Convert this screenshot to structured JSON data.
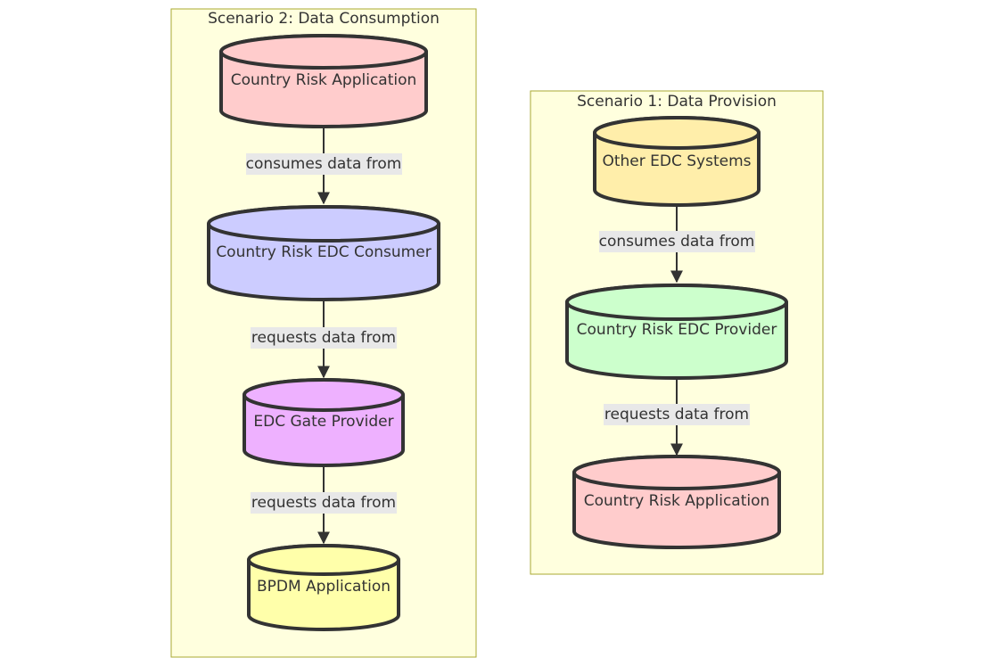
{
  "clusters": [
    {
      "id": "s2",
      "title": "Scenario 2: Data Consumption"
    },
    {
      "id": "s1",
      "title": "Scenario 1: Data Provision"
    }
  ],
  "nodes": [
    {
      "id": "s2_app",
      "label": "Country Risk Application",
      "color": "#ffcccc"
    },
    {
      "id": "s2_consumer",
      "label": "Country Risk EDC Consumer",
      "color": "#ccccff"
    },
    {
      "id": "s2_gate",
      "label": "EDC Gate Provider",
      "color": "#eeb1ff"
    },
    {
      "id": "s2_bpdm",
      "label": "BPDM Application",
      "color": "#ffffaa"
    },
    {
      "id": "s1_other",
      "label": "Other EDC Systems",
      "color": "#ffeeaa"
    },
    {
      "id": "s1_provider",
      "label": "Country Risk EDC Provider",
      "color": "#ccffcc"
    },
    {
      "id": "s1_app",
      "label": "Country Risk Application",
      "color": "#ffcccc"
    }
  ],
  "edges": [
    {
      "from": "s2_app",
      "to": "s2_consumer",
      "label": "consumes data from"
    },
    {
      "from": "s2_consumer",
      "to": "s2_gate",
      "label": "requests data from"
    },
    {
      "from": "s2_gate",
      "to": "s2_bpdm",
      "label": "requests data from"
    },
    {
      "from": "s1_other",
      "to": "s1_provider",
      "label": "consumes data from"
    },
    {
      "from": "s1_provider",
      "to": "s1_app",
      "label": "requests data from"
    }
  ],
  "colors": {
    "cluster_fill": "#ffffde",
    "cluster_stroke": "#aaaa33",
    "line": "#333333",
    "edge_label_bg": "#e8e8e8"
  }
}
